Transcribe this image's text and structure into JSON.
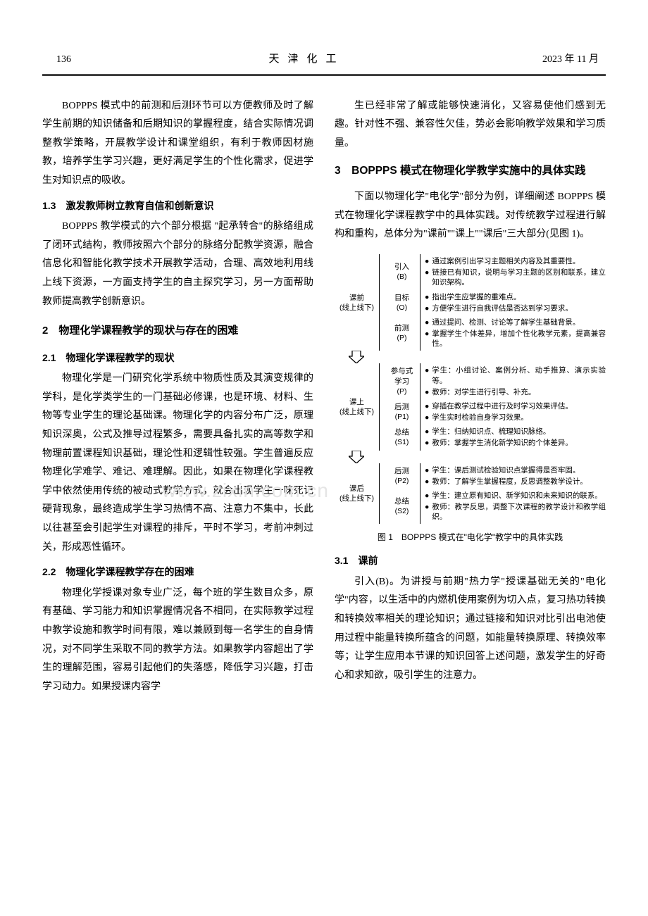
{
  "header": {
    "page_num": "136",
    "journal": "天津化工",
    "date": "2023 年 11 月"
  },
  "left": {
    "p1": "BOPPPS 模式中的前测和后测环节可以方便教师及时了解学生前期的知识储备和后期知识的掌握程度，结合实际情况调整教学策略，开展教学设计和课堂组织，有利于教师因材施教，培养学生学习兴趣，更好满足学生的个性化需求，促进学生对知识点的吸收。",
    "h13": "1.3　激发教师树立教育自信和创新意识",
    "p2": "BOPPPS 教学模式的六个部分根据 \"起承转合\"的脉络组成了闭环式结构，教师按照六个部分的脉络分配教学资源，融合信息化和智能化教学技术开展教学活动，合理、高效地利用线上线下资源，一方面支持学生的自主探究学习，另一方面帮助教师提高教学创新意识。",
    "h2": "2　物理化学课程教学的现状与存在的困难",
    "h21": "2.1　物理化学课程教学的现状",
    "p3": "物理化学是一门研究化学系统中物质性质及其演变规律的学科，是化学类学生的一门基础必修课，也是环境、材料、生物等专业学生的理论基础课。物理化学的内容分布广泛，原理知识深奥，公式及推导过程繁多，需要具备扎实的高等数学和物理前置课程知识基础，理论性和逻辑性较强。学生普遍反应物理化学难学、难记、难理解。因此，如果在物理化学课程教学中依然使用传统的被动式教学方式，就会出现学生一味死记硬背现象，最终造成学生学习热情不高、注意力不集中，长此以往甚至会引起学生对课程的排斥，平时不学习，考前冲刺过关，形成恶性循环。",
    "h22": "2.2　物理化学课程教学存在的困难",
    "p4": "物理化学授课对象专业广泛，每个班的学生数目众多，原有基础、学习能力和知识掌握情况各不相同，在实际教学过程中教学设施和教学时间有限，难以兼顾到每一名学生的自身情况，对不同学生采取不同的教学方法。如果教学内容超出了学生的理解范围，容易引起他们的失落感，降低学习兴趣，打击学习动力。如果授课内容学"
  },
  "right": {
    "p1": "生已经非常了解或能够快速消化，又容易使他们感到无趣。针对性不强、兼容性欠佳，势必会影响教学效果和学习质量。",
    "h3": "3　BOPPPS 模式在物理化学教学实施中的具体实践",
    "p2": "下面以物理化学\"电化学\"部分为例，详细阐述 BOPPPS 模式在物理化学课程教学中的具体实践。对传统教学过程进行解构和重构，总体分为\"课前\"\"课上\"\"课后\"三大部分(见图 1)。",
    "figure_caption": "图 1　BOPPPS 模式在\"电化学\"教学中的具体实践",
    "h31": "3.1　课前",
    "p3": "引入(B)。为讲授与前期\"热力学\"授课基础无关的\"电化学\"内容，以生活中的内燃机使用案例为切入点，复习热功转换和转换效率相关的理论知识；通过链接和知识对比引出电池使用过程中能量转换所蕴含的问题，如能量转换原理、转换效率等；让学生应用本节课的知识回答上述问题，激发学生的好奇心和求知欲，吸引学生的注意力。"
  },
  "diagram": {
    "colors": {
      "line": "#000000",
      "bg": "#ffffff",
      "text": "#000000"
    },
    "phases": [
      {
        "label_line1": "课前",
        "label_line2": "(线上线下)",
        "steps": [
          {
            "label_line1": "引入",
            "label_line2": "(B)",
            "bullets": [
              "通过案例引出学习主题相关内容及其重要性。",
              "链接已有知识，说明与学习主题的区别和联系，建立知识架构。"
            ]
          },
          {
            "label_line1": "目标",
            "label_line2": "(O)",
            "bullets": [
              "指出学生应掌握的重难点。",
              "方便学生进行自我评估是否达到学习要求。"
            ]
          },
          {
            "label_line1": "前测",
            "label_line2": "(P)",
            "bullets": [
              "通过提问、检测、讨论等了解学生基础背景。",
              "掌握学生个体差异，增加个性化教学元素，提高兼容性。"
            ]
          }
        ]
      },
      {
        "label_line1": "课上",
        "label_line2": "(线上线下)",
        "steps": [
          {
            "label_line1": "参与式",
            "label_line2": "学习",
            "label_line3": "(P)",
            "bullets": [
              "学生：小组讨论、案例分析、动手推算、演示实验等。",
              "教师：对学生进行引导、补充。"
            ]
          },
          {
            "label_line1": "后测",
            "label_line2": "(P1)",
            "bullets": [
              "穿插在教学过程中进行及时学习效果评估。",
              "学生实时检验自身学习效果。"
            ]
          },
          {
            "label_line1": "总结",
            "label_line2": "(S1)",
            "bullets": [
              "学生：归纳知识点、梳理知识脉络。",
              "教师：掌握学生消化新学知识的个体差异。"
            ]
          }
        ]
      },
      {
        "label_line1": "课后",
        "label_line2": "(线上线下)",
        "steps": [
          {
            "label_line1": "后测",
            "label_line2": "(P2)",
            "bullets": [
              "学生：课后测试检验知识点掌握得是否牢固。",
              "教师：了解学生掌握程度，反思调整教学设计。"
            ]
          },
          {
            "label_line1": "总结",
            "label_line2": "(S2)",
            "bullets": [
              "学生：建立原有知识、新学知识和未来知识的联系。",
              "教师：教学反思，调整下次课程的教学设计和教学组织。"
            ]
          }
        ]
      }
    ]
  },
  "watermark": "www.zixin.com.cn"
}
